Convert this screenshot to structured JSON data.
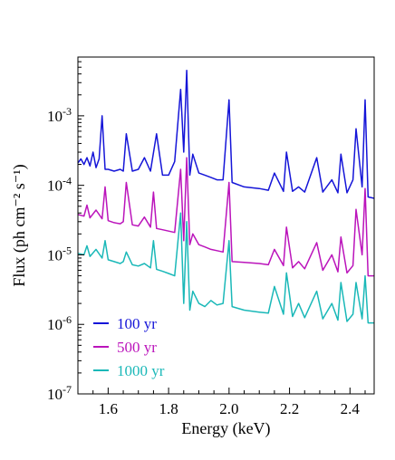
{
  "chart_data": {
    "type": "line",
    "title": "",
    "xlabel": "Energy (keV)",
    "ylabel": "Flux (ph cm⁻² s⁻¹)",
    "xlim": [
      1.5,
      2.48
    ],
    "ylim": [
      1e-07,
      0.007
    ],
    "yscale": "log",
    "grid": false,
    "legend_position": "bottom-left",
    "x_ticks": [
      {
        "value": 1.6,
        "label": "1.6"
      },
      {
        "value": 1.8,
        "label": "1.8"
      },
      {
        "value": 2.0,
        "label": "2.0"
      },
      {
        "value": 2.2,
        "label": "2.2"
      },
      {
        "value": 2.4,
        "label": "2.4"
      }
    ],
    "y_ticks": [
      {
        "value": 1e-07,
        "base": "10",
        "exp": "-7"
      },
      {
        "value": 1e-06,
        "base": "10",
        "exp": "-6"
      },
      {
        "value": 1e-05,
        "base": "10",
        "exp": "-5"
      },
      {
        "value": 0.0001,
        "base": "10",
        "exp": "-4"
      },
      {
        "value": 0.001,
        "base": "10",
        "exp": "-3"
      }
    ],
    "series": [
      {
        "name": "100 yr",
        "color": "#1515d8",
        "x": [
          1.5,
          1.51,
          1.52,
          1.53,
          1.54,
          1.55,
          1.56,
          1.57,
          1.58,
          1.59,
          1.6,
          1.62,
          1.64,
          1.65,
          1.66,
          1.68,
          1.7,
          1.72,
          1.74,
          1.76,
          1.78,
          1.8,
          1.82,
          1.84,
          1.85,
          1.86,
          1.87,
          1.88,
          1.9,
          1.92,
          1.94,
          1.96,
          1.98,
          2.0,
          2.01,
          2.05,
          2.1,
          2.13,
          2.15,
          2.18,
          2.19,
          2.21,
          2.23,
          2.25,
          2.29,
          2.31,
          2.34,
          2.36,
          2.37,
          2.39,
          2.41,
          2.42,
          2.44,
          2.45,
          2.46,
          2.48
        ],
        "y": [
          0.00021,
          0.00024,
          0.0002,
          0.00025,
          0.00019,
          0.0003,
          0.00018,
          0.00024,
          0.001,
          0.00017,
          0.00017,
          0.00016,
          0.00017,
          0.00016,
          0.00055,
          0.00016,
          0.00017,
          0.00025,
          0.00016,
          0.00055,
          0.00014,
          0.00014,
          0.00022,
          0.0024,
          0.0003,
          0.0045,
          0.00014,
          0.00028,
          0.00015,
          0.00014,
          0.00013,
          0.00012,
          0.00012,
          0.0017,
          0.00011,
          9.5e-05,
          9e-05,
          8.5e-05,
          0.00015,
          8.2e-05,
          0.0003,
          8.2e-05,
          9.5e-05,
          8e-05,
          0.00025,
          8e-05,
          0.00012,
          7.8e-05,
          0.00028,
          7.8e-05,
          0.00012,
          0.00065,
          9.5e-05,
          0.0017,
          6.8e-05,
          6.5e-05
        ]
      },
      {
        "name": "500 yr",
        "color": "#bb14bb",
        "x": [
          1.5,
          1.52,
          1.53,
          1.54,
          1.56,
          1.58,
          1.59,
          1.6,
          1.62,
          1.64,
          1.65,
          1.66,
          1.68,
          1.7,
          1.72,
          1.74,
          1.75,
          1.76,
          1.78,
          1.8,
          1.82,
          1.84,
          1.85,
          1.86,
          1.87,
          1.88,
          1.9,
          1.92,
          1.94,
          1.96,
          1.98,
          2.0,
          2.01,
          2.05,
          2.1,
          2.13,
          2.15,
          2.18,
          2.19,
          2.21,
          2.23,
          2.25,
          2.29,
          2.31,
          2.34,
          2.36,
          2.37,
          2.39,
          2.41,
          2.42,
          2.44,
          2.45,
          2.46,
          2.48
        ],
        "y": [
          3.8e-05,
          3.6e-05,
          5.2e-05,
          3.4e-05,
          4.4e-05,
          3.3e-05,
          9.5e-05,
          3.1e-05,
          2.9e-05,
          2.8e-05,
          3e-05,
          0.00011,
          2.7e-05,
          2.6e-05,
          3.5e-05,
          2.5e-05,
          8e-05,
          2.4e-05,
          2.3e-05,
          2.2e-05,
          2.1e-05,
          0.00017,
          1.6e-05,
          0.00025,
          1.4e-05,
          2e-05,
          1.4e-05,
          1.3e-05,
          1.2e-05,
          1.15e-05,
          1.1e-05,
          0.00011,
          8e-06,
          7.8e-06,
          7.5e-06,
          7.2e-06,
          1.2e-05,
          7e-06,
          2.5e-05,
          6.5e-06,
          8e-06,
          6.3e-06,
          1.5e-05,
          6e-06,
          1e-05,
          5.7e-06,
          1.8e-05,
          5.5e-06,
          7e-06,
          4.5e-05,
          1e-05,
          9e-05,
          5e-06,
          5e-06
        ]
      },
      {
        "name": "1000 yr",
        "color": "#1ab8b8",
        "x": [
          1.5,
          1.52,
          1.53,
          1.54,
          1.56,
          1.58,
          1.59,
          1.6,
          1.62,
          1.64,
          1.65,
          1.66,
          1.68,
          1.7,
          1.72,
          1.74,
          1.75,
          1.76,
          1.78,
          1.8,
          1.82,
          1.84,
          1.85,
          1.86,
          1.87,
          1.88,
          1.9,
          1.92,
          1.94,
          1.96,
          1.98,
          2.0,
          2.01,
          2.05,
          2.1,
          2.13,
          2.15,
          2.18,
          2.19,
          2.21,
          2.23,
          2.25,
          2.29,
          2.31,
          2.34,
          2.36,
          2.37,
          2.39,
          2.41,
          2.42,
          2.44,
          2.45,
          2.46,
          2.48
        ],
        "y": [
          1.05e-05,
          1e-05,
          1.35e-05,
          9.5e-06,
          1.2e-05,
          9e-06,
          1.6e-05,
          8.5e-06,
          8e-06,
          7.5e-06,
          8e-06,
          1.1e-05,
          7.2e-06,
          6.9e-06,
          7.5e-06,
          6.5e-06,
          1.6e-05,
          6.2e-06,
          5.8e-06,
          5.4e-06,
          5e-06,
          4e-05,
          2e-06,
          3e-05,
          1.6e-06,
          3e-06,
          2e-06,
          1.8e-06,
          2.2e-06,
          1.9e-06,
          2e-06,
          1.6e-05,
          1.8e-06,
          1.6e-06,
          1.5e-06,
          1.45e-06,
          3.5e-06,
          1.4e-06,
          5.5e-06,
          1.3e-06,
          2e-06,
          1.25e-06,
          3e-06,
          1.2e-06,
          2e-06,
          1.15e-06,
          4e-06,
          1.1e-06,
          1.4e-06,
          4e-06,
          1.2e-06,
          5e-06,
          1.05e-06,
          1.05e-06
        ]
      }
    ]
  }
}
